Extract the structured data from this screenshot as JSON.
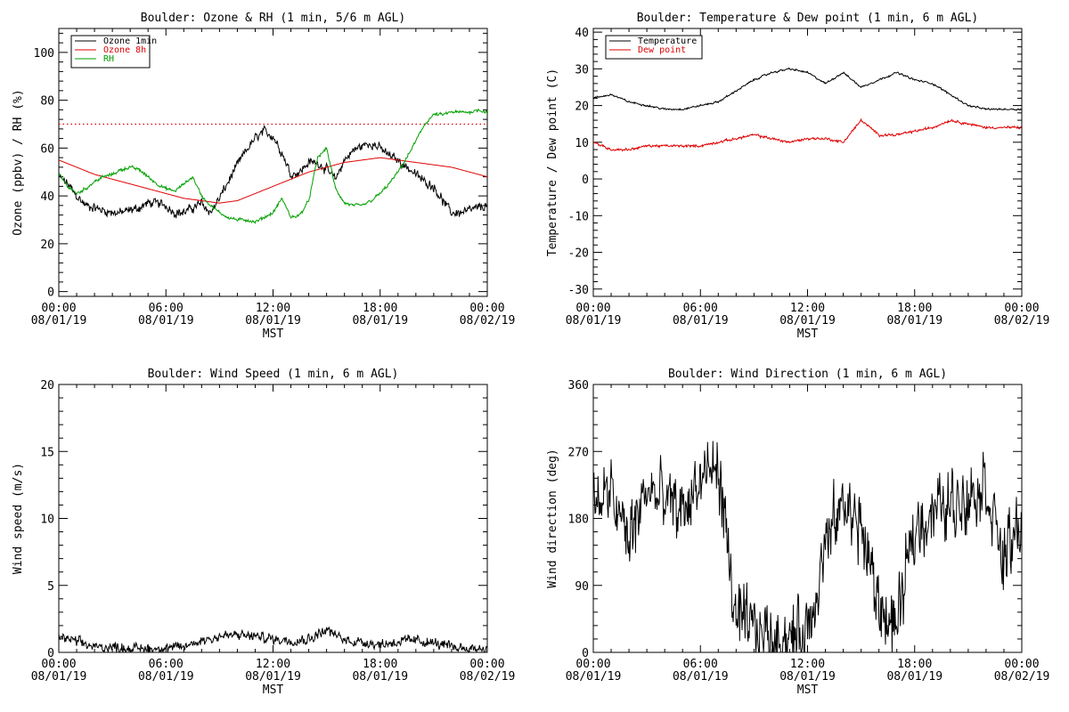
{
  "colors": {
    "black": "#000000",
    "red": "#e00000",
    "green": "#00a000",
    "background": "#ffffff"
  },
  "chart_data": [
    {
      "id": "ozone_rh",
      "type": "line",
      "title": "Boulder: Ozone & RH (1 min, 5/6 m AGL)",
      "xlabel": "MST",
      "ylabel": "Ozone (ppbv) / RH (%)",
      "x_ticks": [
        {
          "hour": 0,
          "time": "00:00",
          "date": "08/01/19"
        },
        {
          "hour": 6,
          "time": "06:00",
          "date": "08/01/19"
        },
        {
          "hour": 12,
          "time": "12:00",
          "date": "08/01/19"
        },
        {
          "hour": 18,
          "time": "18:00",
          "date": "08/01/19"
        },
        {
          "hour": 24,
          "time": "00:00",
          "date": "08/02/19"
        }
      ],
      "xlim": [
        0,
        24
      ],
      "ylim": [
        -2,
        110
      ],
      "y_ticks": [
        0,
        20,
        40,
        60,
        80,
        100
      ],
      "hline": {
        "y": 70,
        "color": "#e00000",
        "style": "dotted"
      },
      "legend_position": "top-left",
      "series": [
        {
          "name": "Ozone 1min",
          "color": "#000000",
          "noise": 2.2,
          "hours": [
            0,
            0.5,
            1,
            1.5,
            2,
            2.5,
            3,
            3.5,
            4,
            4.5,
            5,
            5.5,
            6,
            6.5,
            7,
            7.5,
            8,
            8.5,
            9,
            9.5,
            10,
            10.5,
            11,
            11.5,
            12,
            12.5,
            13,
            13.5,
            14,
            14.5,
            15,
            15.5,
            16,
            16.5,
            17,
            17.5,
            18,
            18.5,
            19,
            19.5,
            20,
            20.5,
            21,
            21.5,
            22,
            22.5,
            23,
            23.5,
            24
          ],
          "values": [
            48,
            45,
            40,
            36,
            35,
            34,
            33,
            33,
            34,
            35,
            37,
            37,
            36,
            33,
            33,
            35,
            37,
            33,
            39,
            46,
            53,
            59,
            64,
            67,
            65,
            58,
            49,
            50,
            54,
            54,
            51,
            47,
            55,
            59,
            61,
            62,
            60,
            57,
            55,
            52,
            49,
            46,
            44,
            38,
            33,
            33,
            34,
            35,
            36
          ]
        },
        {
          "name": "Ozone 8h",
          "color": "#e00000",
          "noise": 0,
          "hours": [
            0,
            1,
            2,
            3,
            4,
            5,
            6,
            7,
            8,
            9,
            10,
            11,
            12,
            13,
            14,
            15,
            16,
            17,
            18,
            19,
            20,
            21,
            22,
            23,
            24
          ],
          "values": [
            55,
            52,
            49,
            47,
            45,
            43,
            41,
            39,
            38,
            37,
            38,
            41,
            44,
            47,
            50,
            52,
            54,
            55,
            56,
            55,
            54,
            53,
            52,
            50,
            48
          ]
        },
        {
          "name": "RH",
          "color": "#00a000",
          "noise": 0.8,
          "hours": [
            0,
            0.5,
            1,
            1.5,
            2,
            2.5,
            3,
            3.5,
            4,
            4.5,
            5,
            5.5,
            6,
            6.5,
            7,
            7.5,
            8,
            8.5,
            9,
            9.5,
            10,
            10.5,
            11,
            11.5,
            12,
            12.5,
            13,
            13.5,
            14,
            14.5,
            15,
            15.5,
            16,
            16.5,
            17,
            17.5,
            18,
            18.5,
            19,
            19.5,
            20,
            20.5,
            21,
            21.5,
            22,
            22.5,
            23,
            23.5,
            24
          ],
          "values": [
            49,
            44,
            41,
            43,
            46,
            48,
            49,
            51,
            52,
            51,
            48,
            45,
            43,
            42,
            45,
            48,
            40,
            36,
            33,
            31,
            30,
            30,
            29,
            31,
            33,
            39,
            31,
            32,
            38,
            56,
            60,
            43,
            37,
            36,
            36,
            38,
            41,
            45,
            50,
            56,
            63,
            70,
            74,
            74,
            75,
            75,
            75,
            76,
            75
          ]
        }
      ]
    },
    {
      "id": "temp_dew",
      "type": "line",
      "title": "Boulder: Temperature & Dew point (1 min, 6 m AGL)",
      "xlabel": "MST",
      "ylabel": "Temperature / Dew point (C)",
      "x_ticks": [
        {
          "hour": 0,
          "time": "00:00",
          "date": "08/01/19"
        },
        {
          "hour": 6,
          "time": "06:00",
          "date": "08/01/19"
        },
        {
          "hour": 12,
          "time": "12:00",
          "date": "08/01/19"
        },
        {
          "hour": 18,
          "time": "18:00",
          "date": "08/01/19"
        },
        {
          "hour": 24,
          "time": "00:00",
          "date": "08/02/19"
        }
      ],
      "xlim": [
        0,
        24
      ],
      "ylim": [
        -32,
        41
      ],
      "y_ticks": [
        -30,
        -20,
        -10,
        0,
        10,
        20,
        30,
        40
      ],
      "legend_position": "top-left",
      "series": [
        {
          "name": "Temperature",
          "color": "#000000",
          "noise": 0.3,
          "hours": [
            0,
            1,
            2,
            3,
            4,
            5,
            6,
            7,
            8,
            9,
            10,
            11,
            12,
            13,
            14,
            15,
            16,
            17,
            18,
            19,
            20,
            21,
            22,
            23,
            24
          ],
          "values": [
            22,
            23,
            21,
            20,
            19,
            19,
            20,
            21,
            24,
            27,
            29,
            30,
            29,
            26,
            29,
            25,
            27,
            29,
            27,
            26,
            23,
            20,
            19,
            19,
            19
          ]
        },
        {
          "name": "Dew point",
          "color": "#e00000",
          "noise": 0.4,
          "hours": [
            0,
            1,
            2,
            3,
            4,
            5,
            6,
            7,
            8,
            9,
            10,
            11,
            12,
            13,
            14,
            15,
            16,
            17,
            18,
            19,
            20,
            21,
            22,
            23,
            24
          ],
          "values": [
            10,
            8,
            8,
            9,
            9,
            9,
            9,
            10,
            11,
            12,
            11,
            10,
            11,
            11,
            10,
            16,
            12,
            12,
            13,
            14,
            16,
            15,
            14,
            14,
            14
          ]
        }
      ]
    },
    {
      "id": "wind_speed",
      "type": "line",
      "title": "Boulder: Wind Speed (1 min, 6 m AGL)",
      "xlabel": "MST",
      "ylabel": "Wind speed (m/s)",
      "x_ticks": [
        {
          "hour": 0,
          "time": "00:00",
          "date": "08/01/19"
        },
        {
          "hour": 6,
          "time": "06:00",
          "date": "08/01/19"
        },
        {
          "hour": 12,
          "time": "12:00",
          "date": "08/01/19"
        },
        {
          "hour": 18,
          "time": "18:00",
          "date": "08/01/19"
        },
        {
          "hour": 24,
          "time": "00:00",
          "date": "08/02/19"
        }
      ],
      "xlim": [
        0,
        24
      ],
      "ylim": [
        0,
        20
      ],
      "y_ticks": [
        0,
        5,
        10,
        15,
        20
      ],
      "series": [
        {
          "name": "",
          "color": "#000000",
          "noise": 0.45,
          "clipmin": 0,
          "hours": [
            0,
            1,
            2,
            3,
            4,
            5,
            6,
            7,
            8,
            9,
            10,
            11,
            12,
            13,
            14,
            15,
            16,
            17,
            18,
            19,
            20,
            21,
            22,
            23,
            24
          ],
          "values": [
            1.2,
            0.8,
            0.4,
            0.4,
            0.3,
            0.3,
            0.3,
            0.4,
            0.9,
            1.2,
            1.3,
            1.2,
            1.0,
            0.9,
            1.0,
            1.7,
            0.9,
            0.8,
            0.6,
            0.8,
            0.9,
            0.7,
            0.4,
            0.3,
            0.3
          ]
        }
      ]
    },
    {
      "id": "wind_dir",
      "type": "line",
      "title": "Boulder: Wind Direction (1 min, 6 m AGL)",
      "xlabel": "MST",
      "ylabel": "Wind direction (deg)",
      "x_ticks": [
        {
          "hour": 0,
          "time": "00:00",
          "date": "08/01/19"
        },
        {
          "hour": 6,
          "time": "06:00",
          "date": "08/01/19"
        },
        {
          "hour": 12,
          "time": "12:00",
          "date": "08/01/19"
        },
        {
          "hour": 18,
          "time": "18:00",
          "date": "08/01/19"
        },
        {
          "hour": 24,
          "time": "00:00",
          "date": "08/02/19"
        }
      ],
      "xlim": [
        0,
        24
      ],
      "ylim": [
        0,
        360
      ],
      "y_ticks": [
        0,
        90,
        180,
        270,
        360
      ],
      "series": [
        {
          "name": "",
          "color": "#000000",
          "noise": 55,
          "clipmin": 0,
          "clipmax": 360,
          "hours": [
            0,
            1,
            2,
            3,
            4,
            5,
            6,
            7,
            8,
            9,
            10,
            11,
            12,
            13,
            14,
            15,
            16,
            17,
            18,
            19,
            20,
            21,
            22,
            23,
            24
          ],
          "values": [
            205,
            210,
            150,
            220,
            200,
            190,
            230,
            250,
            40,
            30,
            20,
            20,
            30,
            140,
            200,
            170,
            60,
            30,
            170,
            190,
            200,
            210,
            230,
            120,
            180
          ]
        }
      ]
    }
  ]
}
